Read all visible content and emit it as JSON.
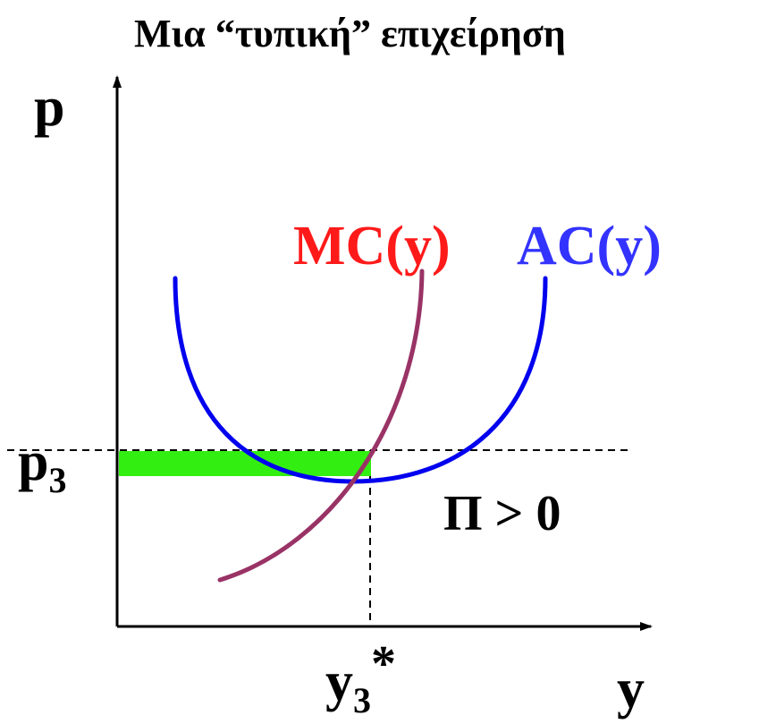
{
  "title": "Μια “τυπική” επιχείρηση",
  "axes": {
    "y_label": "p",
    "x_label": "y"
  },
  "curves": {
    "mc": {
      "label": "MC(y)",
      "color": "#ff1a1a",
      "stroke": "#993366"
    },
    "ac": {
      "label": "AC(y)",
      "color": "#3333ff",
      "stroke": "#0000ee"
    }
  },
  "price_marker": {
    "label_main": "p",
    "label_sub": "3"
  },
  "quantity_marker": {
    "label_main": "y",
    "label_sub": "3",
    "label_suffix": "*"
  },
  "profit": {
    "label": "Π > 0",
    "bar_color": "#33ee11"
  }
}
